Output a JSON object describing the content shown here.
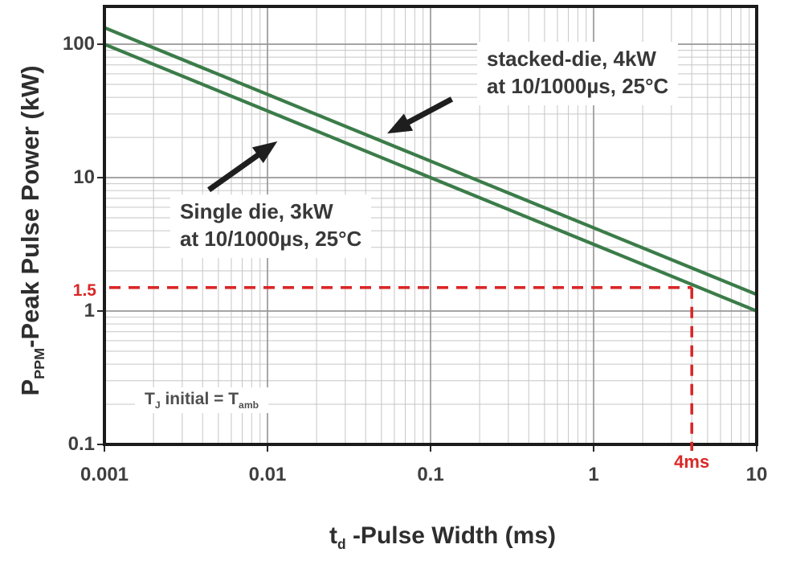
{
  "chart_data": {
    "type": "line",
    "title": "",
    "xlabel": {
      "pre": "t",
      "sub": "d",
      "post": " -Pulse Width (ms)"
    },
    "ylabel": {
      "pre": "P",
      "sub": "PPM",
      "post": "-Peak Pulse Power (kW)"
    },
    "x_scale": "log",
    "y_scale": "log",
    "xlim": [
      0.001,
      10
    ],
    "ylim": [
      0.1,
      192
    ],
    "grid": true,
    "x_ticks": [
      {
        "value": 0.001,
        "label": "0.001"
      },
      {
        "value": 0.01,
        "label": "0.01"
      },
      {
        "value": 0.1,
        "label": "0.1"
      },
      {
        "value": 1,
        "label": "1"
      },
      {
        "value": 10,
        "label": "10"
      }
    ],
    "y_ticks": [
      {
        "value": 0.1,
        "label": "0.1"
      },
      {
        "value": 1,
        "label": "1"
      },
      {
        "value": 10,
        "label": "10"
      },
      {
        "value": 100,
        "label": "100"
      }
    ],
    "series": [
      {
        "name": "stacked-die, 4kW at 10/1000µs, 25°C",
        "color": "#3b7c49",
        "points": [
          [
            0.001,
            133
          ],
          [
            10,
            1.33
          ]
        ]
      },
      {
        "name": "Single die, 3kW at 10/1000µs, 25°C",
        "color": "#3b7c49",
        "points": [
          [
            0.001,
            100
          ],
          [
            10,
            1.0
          ]
        ]
      }
    ],
    "guides": {
      "x_value": 4,
      "x_label": "4ms",
      "y_value": 1.5,
      "y_label": "1.5",
      "color": "#da2727",
      "style": "dashed"
    },
    "arrows": [
      {
        "name": "single-die-arrow",
        "from": [
          0.00437,
          8.1
        ],
        "to": [
          0.0115,
          18.7
        ]
      },
      {
        "name": "stacked-die-arrow",
        "from": [
          0.135,
          38.8
        ],
        "to": [
          0.0542,
          21.4
        ]
      }
    ],
    "annotations": {
      "stacked": {
        "line1": "stacked-die, 4kW",
        "line2": "at 10/1000µs, 25°C"
      },
      "single": {
        "line1": "Single die, 3kW",
        "line2": "at 10/1000µs, 25°C"
      },
      "note": {
        "p1": "T",
        "s1": "J",
        "p2": " initial = T",
        "s2": "amb"
      }
    },
    "colors": {
      "line": "#3b7c49",
      "guide": "#da2727",
      "grid_minor": "#c6c6c6",
      "grid_major": "#989898",
      "border": "#1b1b1b",
      "arrow": "#1e1e1e"
    }
  }
}
